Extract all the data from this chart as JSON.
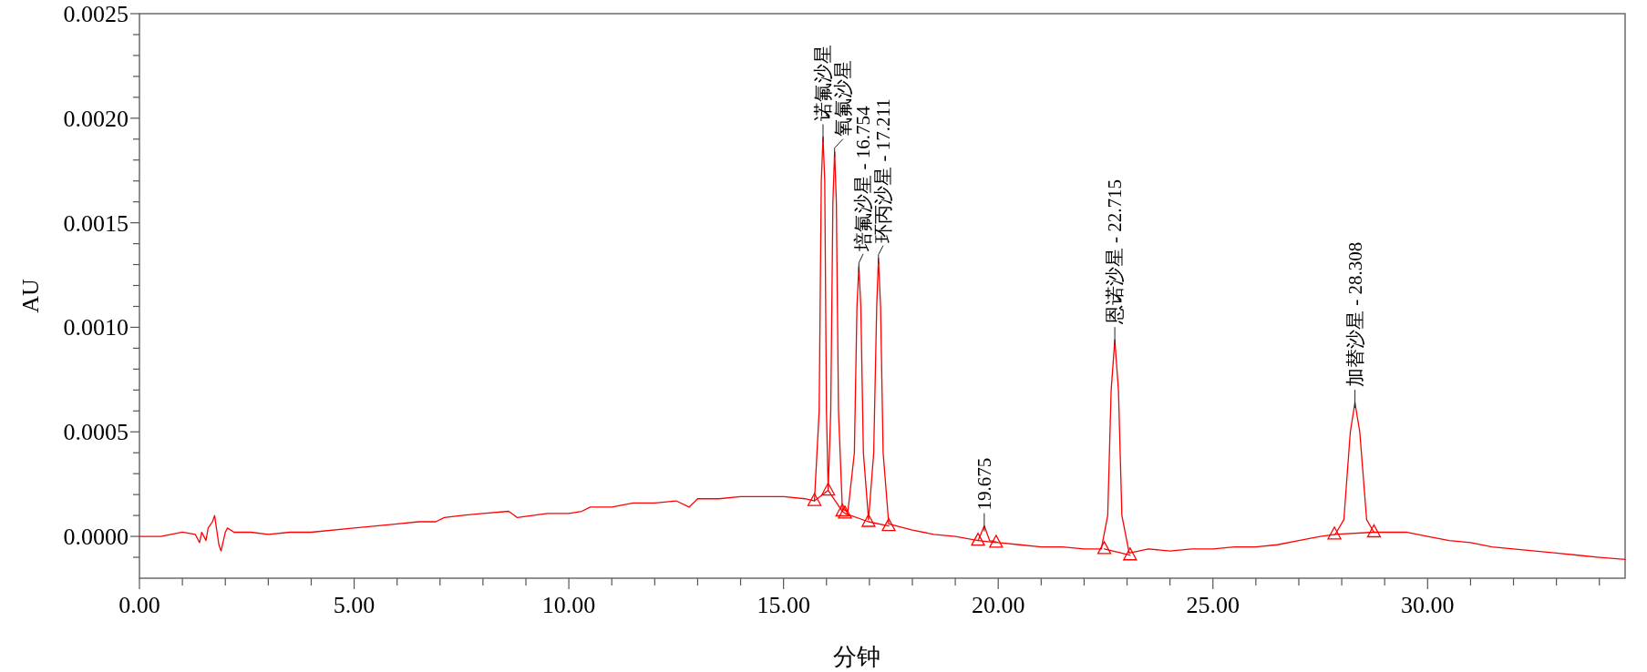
{
  "chart_data": {
    "type": "line",
    "xlabel": "分钟",
    "ylabel": "AU",
    "xlim": [
      0,
      34.6
    ],
    "ylim": [
      -0.0002,
      0.0025
    ],
    "xticks": [
      {
        "value": 0,
        "label": "0.00"
      },
      {
        "value": 1,
        "label": null
      },
      {
        "value": 2,
        "label": null
      },
      {
        "value": 3,
        "label": null
      },
      {
        "value": 4,
        "label": null
      },
      {
        "value": 5,
        "label": "5.00"
      },
      {
        "value": 6,
        "label": null
      },
      {
        "value": 7,
        "label": null
      },
      {
        "value": 8,
        "label": null
      },
      {
        "value": 9,
        "label": null
      },
      {
        "value": 10,
        "label": "10.00"
      },
      {
        "value": 11,
        "label": null
      },
      {
        "value": 12,
        "label": null
      },
      {
        "value": 13,
        "label": null
      },
      {
        "value": 14,
        "label": null
      },
      {
        "value": 15,
        "label": "15.00"
      },
      {
        "value": 16,
        "label": null
      },
      {
        "value": 17,
        "label": null
      },
      {
        "value": 18,
        "label": null
      },
      {
        "value": 19,
        "label": null
      },
      {
        "value": 20,
        "label": "20.00"
      },
      {
        "value": 21,
        "label": null
      },
      {
        "value": 22,
        "label": null
      },
      {
        "value": 23,
        "label": null
      },
      {
        "value": 24,
        "label": null
      },
      {
        "value": 25,
        "label": "25.00"
      },
      {
        "value": 26,
        "label": null
      },
      {
        "value": 27,
        "label": null
      },
      {
        "value": 28,
        "label": null
      },
      {
        "value": 29,
        "label": null
      },
      {
        "value": 30,
        "label": "30.00"
      },
      {
        "value": 31,
        "label": null
      },
      {
        "value": 32,
        "label": null
      },
      {
        "value": 33,
        "label": null
      },
      {
        "value": 34,
        "label": null
      }
    ],
    "yticks": [
      {
        "value": -0.0001,
        "label": null
      },
      {
        "value": 0,
        "label": "0.0000"
      },
      {
        "value": 0.0001,
        "label": null
      },
      {
        "value": 0.0002,
        "label": null
      },
      {
        "value": 0.0003,
        "label": null
      },
      {
        "value": 0.0004,
        "label": null
      },
      {
        "value": 0.0005,
        "label": "0.0005"
      },
      {
        "value": 0.0006,
        "label": null
      },
      {
        "value": 0.0007,
        "label": null
      },
      {
        "value": 0.0008,
        "label": null
      },
      {
        "value": 0.0009,
        "label": null
      },
      {
        "value": 0.001,
        "label": "0.0010"
      },
      {
        "value": 0.0011,
        "label": null
      },
      {
        "value": 0.0012,
        "label": null
      },
      {
        "value": 0.0013,
        "label": null
      },
      {
        "value": 0.0014,
        "label": null
      },
      {
        "value": 0.0015,
        "label": "0.0015"
      },
      {
        "value": 0.0016,
        "label": null
      },
      {
        "value": 0.0017,
        "label": null
      },
      {
        "value": 0.0018,
        "label": null
      },
      {
        "value": 0.0019,
        "label": null
      },
      {
        "value": 0.002,
        "label": "0.0020"
      },
      {
        "value": 0.0021,
        "label": null
      },
      {
        "value": 0.0022,
        "label": null
      },
      {
        "value": 0.0023,
        "label": null
      },
      {
        "value": 0.0024,
        "label": null
      },
      {
        "value": 0.0025,
        "label": "0.0025"
      }
    ],
    "grid": false,
    "series": [
      {
        "color": "#ff0000",
        "marker": "none",
        "x": [
          0,
          0.5,
          1.0,
          1.3,
          1.4,
          1.45,
          1.55,
          1.6,
          1.7,
          1.75,
          1.85,
          1.9,
          2.0,
          2.05,
          2.2,
          2.6,
          3.0,
          3.5,
          4.0,
          5.0,
          5.5,
          6.0,
          6.5,
          6.9,
          7.1,
          7.5,
          8.0,
          8.6,
          8.8,
          9.5,
          10.0,
          10.3,
          10.5,
          11.0,
          11.5,
          12.0,
          12.5,
          12.8,
          13.0,
          13.5,
          14.0,
          14.5,
          15.0,
          15.5,
          15.72,
          15.83,
          15.88,
          15.92,
          15.96,
          16.0,
          16.04,
          16.1,
          16.15,
          16.19,
          16.23,
          16.28,
          16.37,
          16.5,
          16.65,
          16.71,
          16.754,
          16.8,
          16.86,
          16.98,
          17.1,
          17.17,
          17.211,
          17.26,
          17.32,
          17.45,
          18.0,
          18.5,
          19.0,
          19.53,
          19.675,
          19.8,
          20.0,
          20.5,
          21.0,
          21.5,
          22.0,
          22.4,
          22.55,
          22.63,
          22.715,
          22.8,
          22.88,
          23.05,
          23.5,
          24.0,
          24.5,
          25.0,
          25.5,
          26.0,
          26.5,
          27.0,
          27.5,
          27.85,
          28.05,
          28.2,
          28.308,
          28.42,
          28.58,
          28.75,
          29.0,
          29.5,
          30.0,
          30.5,
          31.0,
          31.5,
          32.0,
          32.5,
          33.0,
          33.5,
          34.0,
          34.6
        ],
        "values": [
          0,
          0,
          2e-05,
          1e-05,
          -3e-05,
          2e-05,
          -2e-05,
          4e-05,
          7e-05,
          0.0001,
          -4e-05,
          -7e-05,
          2e-05,
          4e-05,
          2e-05,
          2e-05,
          1e-05,
          2e-05,
          2e-05,
          4e-05,
          5e-05,
          6e-05,
          7e-05,
          7e-05,
          9e-05,
          0.0001,
          0.00011,
          0.00012,
          9e-05,
          0.00011,
          0.00011,
          0.00012,
          0.00014,
          0.00014,
          0.00016,
          0.00016,
          0.00017,
          0.00014,
          0.00018,
          0.00018,
          0.00019,
          0.00019,
          0.00019,
          0.00018,
          0.00017,
          0.0006,
          0.0017,
          0.00191,
          0.0017,
          0.0006,
          0.00022,
          0.0006,
          0.0016,
          0.00184,
          0.0016,
          0.0006,
          0.00013,
          0.00012,
          0.0004,
          0.0011,
          0.00129,
          0.0011,
          0.0004,
          8e-05,
          0.0004,
          0.0011,
          0.00133,
          0.0011,
          0.0004,
          6e-05,
          3e-05,
          1e-05,
          0.0,
          -2e-05,
          5e-05,
          -2e-05,
          -3e-05,
          -4e-05,
          -5e-05,
          -5e-05,
          -6e-05,
          -6e-05,
          0.0001,
          0.0007,
          0.00094,
          0.0007,
          0.0001,
          -8e-05,
          -6e-05,
          -7e-05,
          -6e-05,
          -6e-05,
          -5e-05,
          -5e-05,
          -4e-05,
          -2e-05,
          0.0,
          1e-05,
          8e-05,
          0.0005,
          0.00064,
          0.0005,
          8e-05,
          2e-05,
          2e-05,
          2e-05,
          0.0,
          -2e-05,
          -3e-05,
          -5e-05,
          -6e-05,
          -7e-05,
          -8e-05,
          -9e-05,
          -0.0001,
          -0.00011
        ]
      },
      {
        "color": "#ff0000",
        "marker": "triangle",
        "x": [
          15.72,
          16.04,
          16.37,
          16.43,
          16.98,
          17.45,
          null,
          19.53,
          19.95,
          null,
          22.47,
          23.07,
          null,
          27.83,
          28.75
        ],
        "values": [
          0.00017,
          0.00022,
          0.00012,
          0.00011,
          7e-05,
          5e-05,
          null,
          -2e-05,
          -3e-05,
          null,
          -6e-05,
          -9e-05,
          null,
          1e-05,
          2e-05
        ]
      }
    ],
    "annotations": [
      {
        "text": "诺氟沙星",
        "x": 15.92,
        "y": 0.00191
      },
      {
        "text": "氧氟沙星",
        "x": 16.19,
        "y": 0.00184
      },
      {
        "text": "培氟沙星 - 16.754",
        "x": 16.754,
        "y": 0.00129
      },
      {
        "text": "环丙沙星 - 17.211",
        "x": 17.211,
        "y": 0.00133
      },
      {
        "text": "19.675",
        "x": 19.675,
        "y": 5e-05
      },
      {
        "text": "恩诺沙星 - 22.715",
        "x": 22.715,
        "y": 0.00094
      },
      {
        "text": "加替沙星 - 28.308",
        "x": 28.308,
        "y": 0.00064
      }
    ]
  }
}
